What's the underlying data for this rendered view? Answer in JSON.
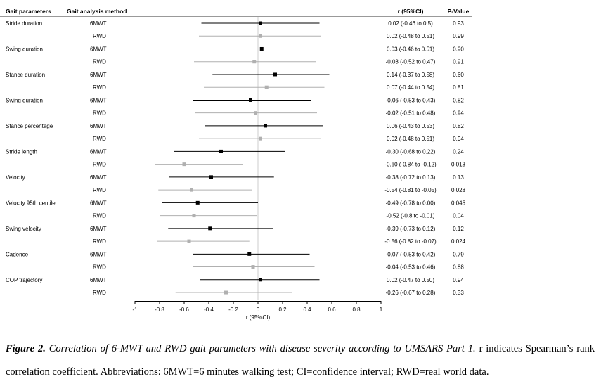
{
  "chart_data": {
    "type": "forest",
    "headers": {
      "param": "Gait parameters",
      "method": "Gait analysis method",
      "ci": "r (95%CI)",
      "p": "P-Value"
    },
    "xlabel": "r (95%CI)",
    "xlim": [
      -1,
      1
    ],
    "xticks": [
      "-1",
      "-0.8",
      "-0.6",
      "-0.4",
      "-0.2",
      "0",
      "0.2",
      "0.4",
      "0.6",
      "0.8",
      "1"
    ],
    "colors": {
      "6MWT": "#000000",
      "RWD": "#b0b0b0"
    },
    "groups": [
      {
        "param": "Stride duration",
        "rows": [
          {
            "method": "6MWT",
            "r": 0.02,
            "lo": -0.46,
            "hi": 0.5,
            "text": "0.02 (-0.46 to 0.5)",
            "p": "0.93"
          },
          {
            "method": "RWD",
            "r": 0.02,
            "lo": -0.48,
            "hi": 0.51,
            "text": "0.02 (-0.48 to 0.51)",
            "p": "0.99"
          }
        ]
      },
      {
        "param": "Swing duration",
        "rows": [
          {
            "method": "6MWT",
            "r": 0.03,
            "lo": -0.46,
            "hi": 0.51,
            "text": "0.03 (-0.46 to 0.51)",
            "p": "0.90"
          },
          {
            "method": "RWD",
            "r": -0.03,
            "lo": -0.52,
            "hi": 0.47,
            "text": "-0.03 (-0.52 to 0.47)",
            "p": "0.91"
          }
        ]
      },
      {
        "param": "Stance duration",
        "rows": [
          {
            "method": "6MWT",
            "r": 0.14,
            "lo": -0.37,
            "hi": 0.58,
            "text": "0.14 (-0.37 to 0.58)",
            "p": "0.60"
          },
          {
            "method": "RWD",
            "r": 0.07,
            "lo": -0.44,
            "hi": 0.54,
            "text": "0.07 (-0.44 to 0.54)",
            "p": "0.81"
          }
        ]
      },
      {
        "param": "Swing duration",
        "rows": [
          {
            "method": "6MWT",
            "r": -0.06,
            "lo": -0.53,
            "hi": 0.43,
            "text": "-0.06 (-0.53 to 0.43)",
            "p": "0.82"
          },
          {
            "method": "RWD",
            "r": -0.02,
            "lo": -0.51,
            "hi": 0.48,
            "text": "-0.02 (-0.51 to 0.48)",
            "p": "0.94"
          }
        ]
      },
      {
        "param": "Stance percentage",
        "rows": [
          {
            "method": "6MWT",
            "r": 0.06,
            "lo": -0.43,
            "hi": 0.53,
            "text": "0.06 (-0.43 to 0.53)",
            "p": "0.82"
          },
          {
            "method": "RWD",
            "r": 0.02,
            "lo": -0.48,
            "hi": 0.51,
            "text": "0.02 (-0.48 to 0.51)",
            "p": "0.94"
          }
        ]
      },
      {
        "param": "Stride length",
        "rows": [
          {
            "method": "6MWT",
            "r": -0.3,
            "lo": -0.68,
            "hi": 0.22,
            "text": "-0.30 (-0.68 to 0.22)",
            "p": "0.24"
          },
          {
            "method": "RWD",
            "r": -0.6,
            "lo": -0.84,
            "hi": -0.12,
            "text": "-0.60 (-0.84 to -0.12)",
            "p": "0.013"
          }
        ]
      },
      {
        "param": "Velocity",
        "rows": [
          {
            "method": "6MWT",
            "r": -0.38,
            "lo": -0.72,
            "hi": 0.13,
            "text": "-0.38 (-0.72 to 0.13)",
            "p": "0.13"
          },
          {
            "method": "RWD",
            "r": -0.54,
            "lo": -0.81,
            "hi": -0.05,
            "text": "-0.54 (-0.81 to -0.05)",
            "p": "0.028"
          }
        ]
      },
      {
        "param": "Velocity 95th centile",
        "rows": [
          {
            "method": "6MWT",
            "r": -0.49,
            "lo": -0.78,
            "hi": 0.0,
            "text": "-0.49 (-0.78 to 0.00)",
            "p": "0.045"
          },
          {
            "method": "RWD",
            "r": -0.52,
            "lo": -0.8,
            "hi": -0.01,
            "text": "-0.52 (-0.8 to -0.01)",
            "p": "0.04"
          }
        ]
      },
      {
        "param": "Swing velocity",
        "rows": [
          {
            "method": "6MWT",
            "r": -0.39,
            "lo": -0.73,
            "hi": 0.12,
            "text": "-0.39 (-0.73 to 0.12)",
            "p": "0.12"
          },
          {
            "method": "RWD",
            "r": -0.56,
            "lo": -0.82,
            "hi": -0.07,
            "text": "-0.56 (-0.82 to -0.07)",
            "p": "0.024"
          }
        ]
      },
      {
        "param": "Cadence",
        "rows": [
          {
            "method": "6MWT",
            "r": -0.07,
            "lo": -0.53,
            "hi": 0.42,
            "text": "-0.07 (-0.53 to 0.42)",
            "p": "0.79"
          },
          {
            "method": "RWD",
            "r": -0.04,
            "lo": -0.53,
            "hi": 0.46,
            "text": "-0.04 (-0.53 to 0.46)",
            "p": "0.88"
          }
        ]
      },
      {
        "param": "COP trajectory",
        "rows": [
          {
            "method": "6MWT",
            "r": 0.02,
            "lo": -0.47,
            "hi": 0.5,
            "text": "0.02 (-0.47 to 0.50)",
            "p": "0.94"
          },
          {
            "method": "RWD",
            "r": -0.26,
            "lo": -0.67,
            "hi": 0.28,
            "text": "-0.26 (-0.67 to 0.28)",
            "p": "0.33"
          }
        ]
      }
    ]
  },
  "caption": {
    "label": "Figure 2.",
    "title": "Correlation of 6-MWT and RWD gait parameters with disease severity according to UMSARS Part 1.",
    "body": "r indicates Spearman’s rank correlation coefficient. Abbreviations: 6MWT=6 minutes walking test; CI=confidence interval; RWD=real world data."
  }
}
